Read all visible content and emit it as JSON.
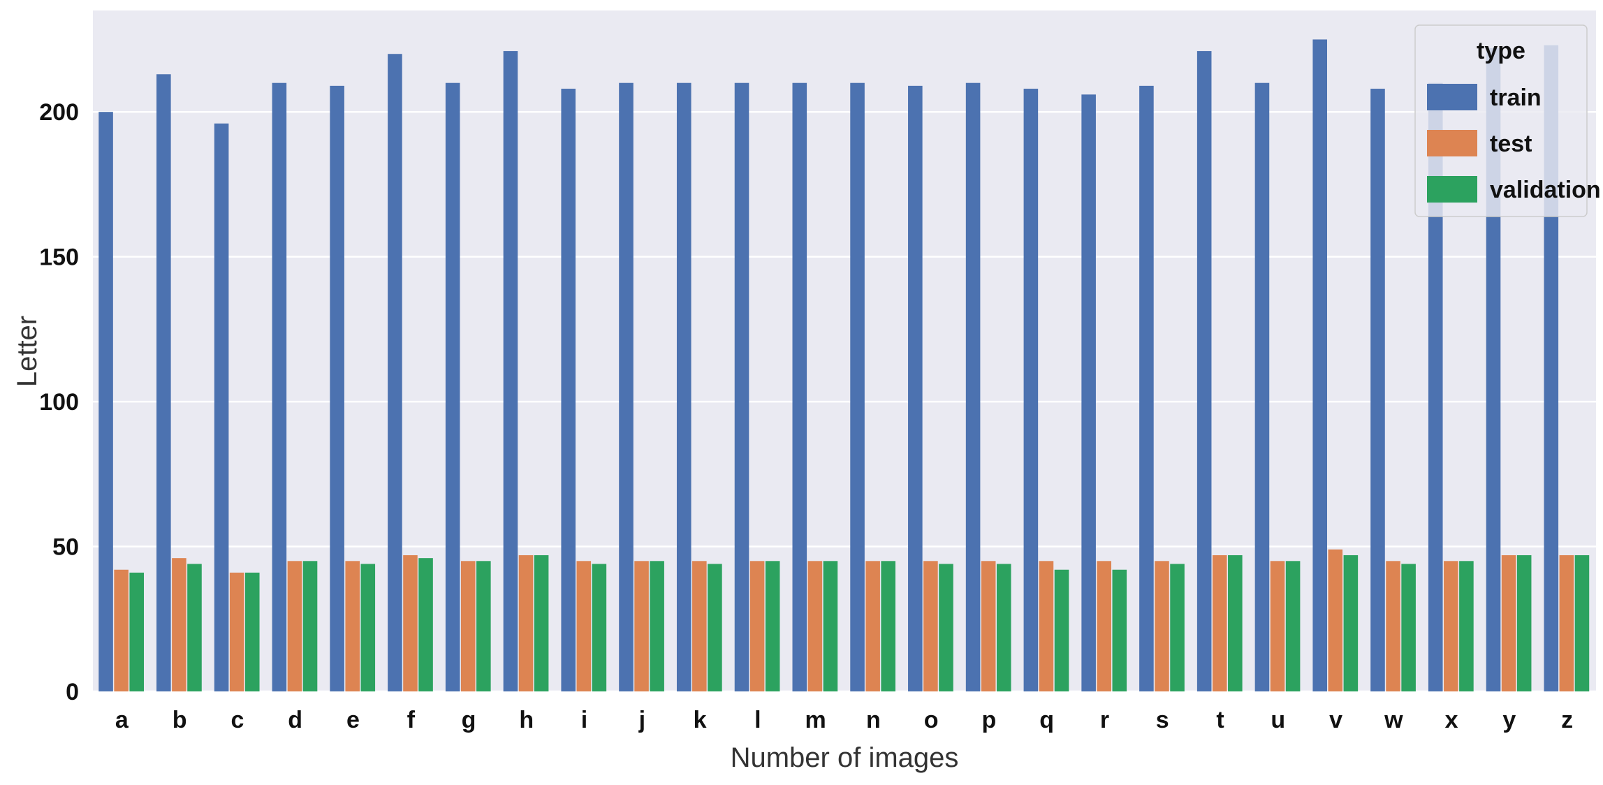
{
  "chart_data": {
    "type": "bar",
    "title": "",
    "xlabel": "Number of images",
    "ylabel": "Letter",
    "categories": [
      "a",
      "b",
      "c",
      "d",
      "e",
      "f",
      "g",
      "h",
      "i",
      "j",
      "k",
      "l",
      "m",
      "n",
      "o",
      "p",
      "q",
      "r",
      "s",
      "t",
      "u",
      "v",
      "w",
      "x",
      "y",
      "z"
    ],
    "series": [
      {
        "name": "train",
        "color": "#4c72b0",
        "values": [
          200,
          213,
          196,
          210,
          209,
          220,
          210,
          221,
          208,
          210,
          210,
          210,
          210,
          210,
          209,
          210,
          208,
          206,
          209,
          221,
          210,
          225,
          208,
          210,
          222,
          223
        ]
      },
      {
        "name": "test",
        "color": "#dd8452",
        "values": [
          42,
          46,
          41,
          45,
          45,
          47,
          45,
          47,
          45,
          45,
          45,
          45,
          45,
          45,
          45,
          45,
          45,
          45,
          45,
          47,
          45,
          49,
          45,
          45,
          47,
          47
        ]
      },
      {
        "name": "validation",
        "color": "#2ca25f",
        "values": [
          41,
          44,
          41,
          45,
          44,
          46,
          45,
          47,
          44,
          45,
          44,
          45,
          45,
          45,
          44,
          44,
          42,
          42,
          44,
          47,
          45,
          47,
          44,
          45,
          47,
          47
        ]
      }
    ],
    "y_ticks": [
      0,
      50,
      100,
      150,
      200
    ],
    "ylim": [
      0,
      235
    ],
    "grid": true,
    "legend": {
      "title": "type",
      "placement": "top-right"
    },
    "background_color": "#eaeaf2",
    "grid_color": "#ffffff"
  }
}
